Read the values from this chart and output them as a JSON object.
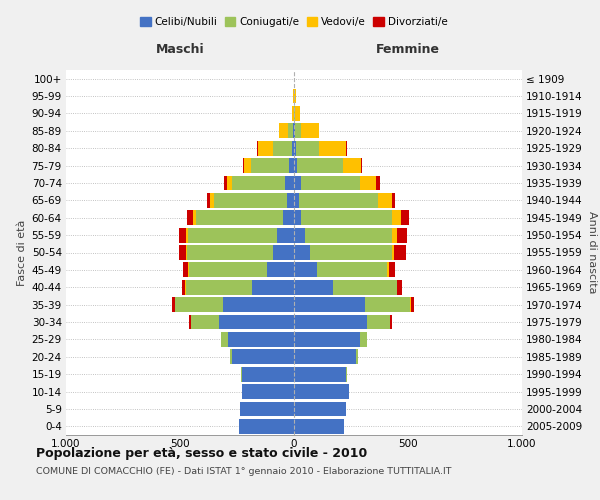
{
  "age_groups": [
    "0-4",
    "5-9",
    "10-14",
    "15-19",
    "20-24",
    "25-29",
    "30-34",
    "35-39",
    "40-44",
    "45-49",
    "50-54",
    "55-59",
    "60-64",
    "65-69",
    "70-74",
    "75-79",
    "80-84",
    "85-89",
    "90-94",
    "95-99",
    "100+"
  ],
  "birth_years": [
    "2005-2009",
    "2000-2004",
    "1995-1999",
    "1990-1994",
    "1985-1989",
    "1980-1984",
    "1975-1979",
    "1970-1974",
    "1965-1969",
    "1960-1964",
    "1955-1959",
    "1950-1954",
    "1945-1949",
    "1940-1944",
    "1935-1939",
    "1930-1934",
    "1925-1929",
    "1920-1924",
    "1915-1919",
    "1910-1914",
    "≤ 1909"
  ],
  "colors": {
    "celibi": "#4472c4",
    "coniugati": "#9dc35a",
    "vedovi": "#ffc000",
    "divorziati": "#cc0000"
  },
  "males": {
    "celibi": [
      240,
      235,
      230,
      230,
      270,
      290,
      330,
      310,
      185,
      120,
      90,
      75,
      50,
      30,
      40,
      20,
      10,
      5,
      0,
      0,
      0
    ],
    "coniugati": [
      0,
      0,
      0,
      2,
      10,
      30,
      120,
      210,
      290,
      340,
      380,
      390,
      380,
      320,
      230,
      170,
      80,
      20,
      2,
      0,
      0
    ],
    "vedovi": [
      0,
      0,
      0,
      0,
      0,
      0,
      1,
      2,
      2,
      3,
      5,
      10,
      15,
      20,
      25,
      30,
      70,
      40,
      8,
      3,
      0
    ],
    "divorziati": [
      0,
      0,
      0,
      0,
      0,
      2,
      10,
      15,
      15,
      25,
      30,
      30,
      25,
      10,
      10,
      5,
      2,
      0,
      0,
      0,
      0
    ]
  },
  "females": {
    "celibi": [
      220,
      230,
      240,
      230,
      270,
      290,
      320,
      310,
      170,
      100,
      70,
      50,
      30,
      20,
      30,
      15,
      10,
      5,
      1,
      0,
      0
    ],
    "coniugati": [
      0,
      0,
      0,
      2,
      10,
      30,
      100,
      200,
      280,
      310,
      360,
      380,
      400,
      350,
      260,
      200,
      100,
      25,
      5,
      2,
      0
    ],
    "vedovi": [
      0,
      0,
      0,
      0,
      0,
      0,
      1,
      2,
      3,
      5,
      10,
      20,
      40,
      60,
      70,
      80,
      120,
      80,
      20,
      5,
      1
    ],
    "divorziati": [
      0,
      0,
      0,
      0,
      0,
      2,
      10,
      15,
      20,
      30,
      50,
      45,
      35,
      15,
      15,
      5,
      2,
      0,
      0,
      0,
      0
    ]
  },
  "xlim": 1000,
  "xticks": [
    -1000,
    -500,
    0,
    500,
    1000
  ],
  "xticklabels": [
    "1.000",
    "500",
    "0",
    "500",
    "1.000"
  ],
  "title": "Popolazione per età, sesso e stato civile - 2010",
  "subtitle": "COMUNE DI COMACCHIO (FE) - Dati ISTAT 1° gennaio 2010 - Elaborazione TUTTITALIA.IT",
  "ylabel_left": "Fasce di età",
  "ylabel_right": "Anni di nascita",
  "header_left": "Maschi",
  "header_right": "Femmine",
  "background_color": "#f0f0f0",
  "plot_background": "#ffffff"
}
